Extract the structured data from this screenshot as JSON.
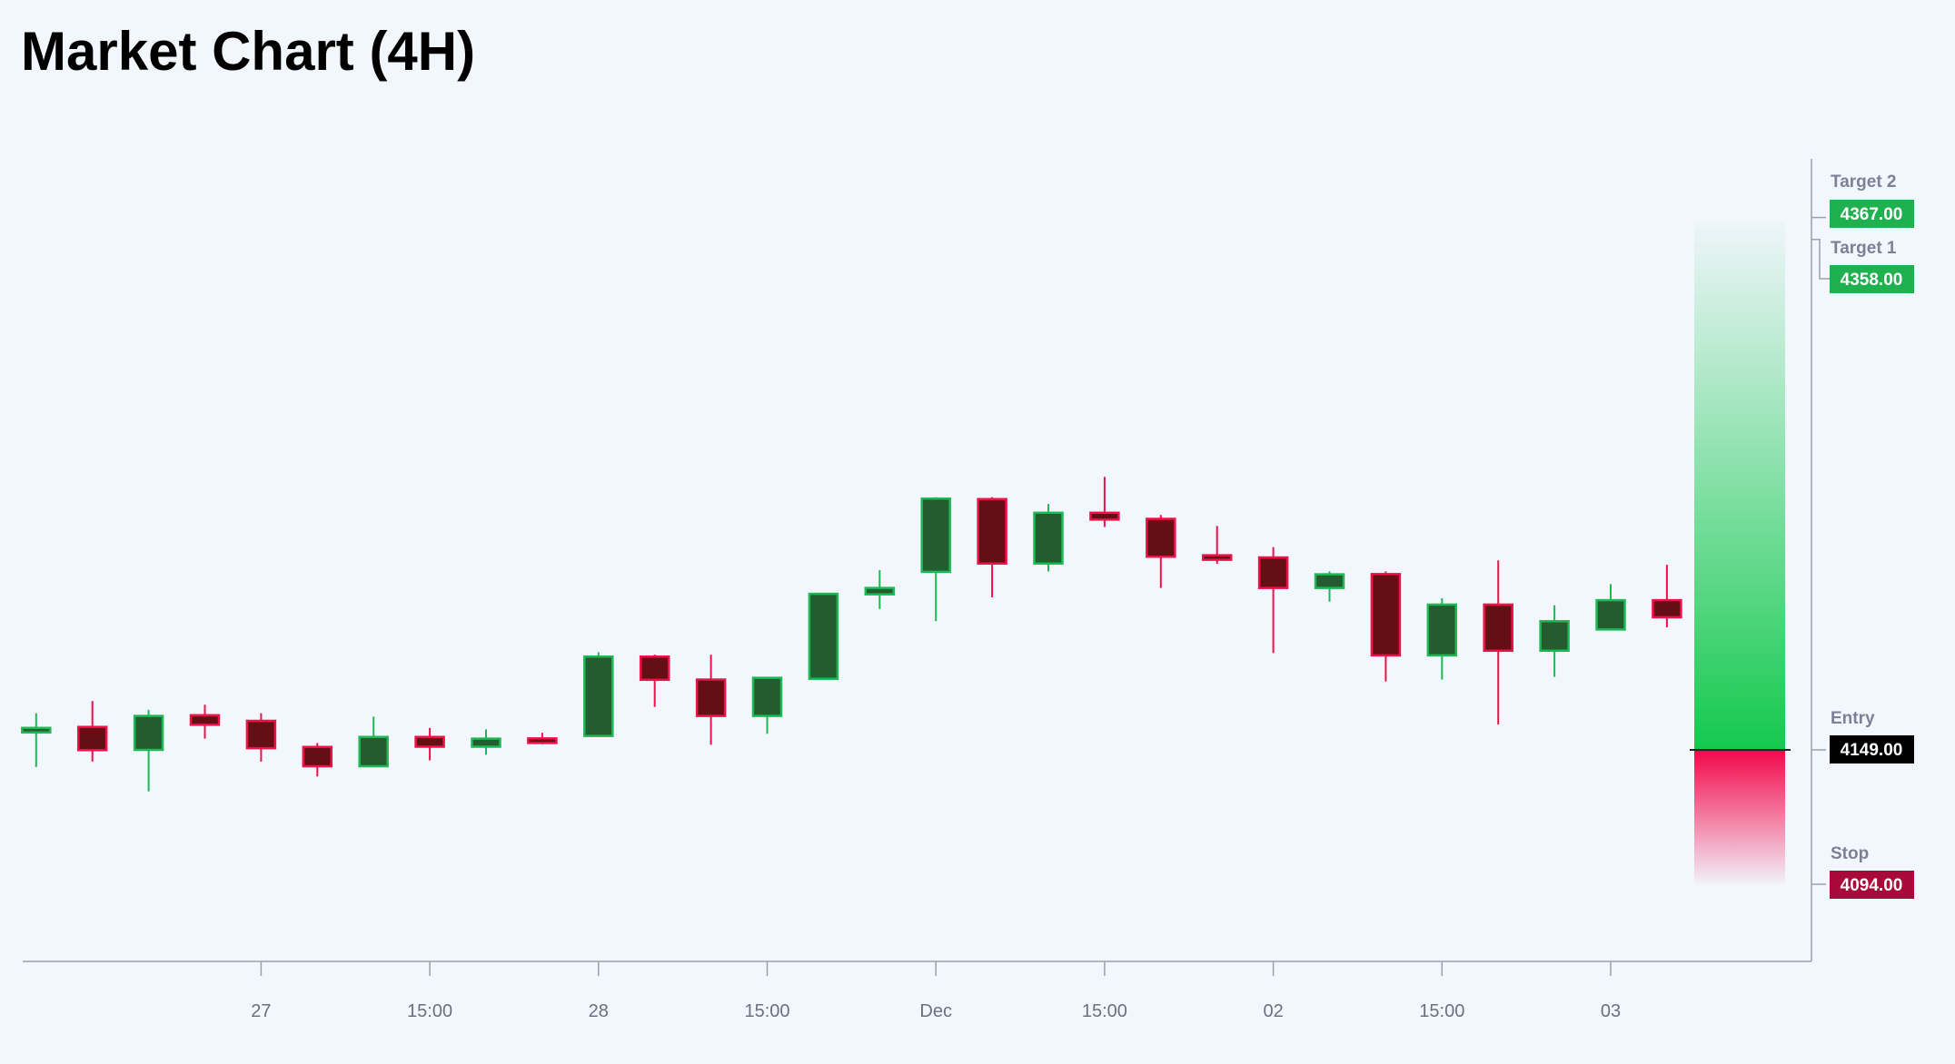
{
  "title": "Market Chart (4H)",
  "chart_data": {
    "type": "candlestick",
    "title": "Market Chart (4H)",
    "x_tick_labels": [
      {
        "candle_index": 4,
        "label": "27"
      },
      {
        "candle_index": 7,
        "label": "15:00"
      },
      {
        "candle_index": 10,
        "label": "28"
      },
      {
        "candle_index": 13,
        "label": "15:00"
      },
      {
        "candle_index": 16,
        "label": "Dec"
      },
      {
        "candle_index": 19,
        "label": "15:00"
      },
      {
        "candle_index": 22,
        "label": "02"
      },
      {
        "candle_index": 25,
        "label": "15:00"
      },
      {
        "candle_index": 28,
        "label": "03"
      }
    ],
    "candles": [
      {
        "o": 4157,
        "h": 4164,
        "l": 4142,
        "c": 4158
      },
      {
        "o": 4158.4,
        "h": 4169,
        "l": 4144.2,
        "c": 4148.9
      },
      {
        "o": 4149,
        "h": 4165.4,
        "l": 4132,
        "c": 4162.9
      },
      {
        "o": 4163.2,
        "h": 4167.5,
        "l": 4153.6,
        "c": 4159.3
      },
      {
        "o": 4160.9,
        "h": 4164,
        "l": 4144.2,
        "c": 4149.7
      },
      {
        "o": 4150.2,
        "h": 4151.8,
        "l": 4138.1,
        "c": 4142.3
      },
      {
        "o": 4142.3,
        "h": 4162.6,
        "l": 4142.3,
        "c": 4154.3
      },
      {
        "o": 4154.3,
        "h": 4158,
        "l": 4144.7,
        "c": 4150.3
      },
      {
        "o": 4150.3,
        "h": 4157.4,
        "l": 4147,
        "c": 4153.6
      },
      {
        "o": 4153.7,
        "h": 4156,
        "l": 4151.3,
        "c": 4152.5
      },
      {
        "o": 4154.7,
        "h": 4189,
        "l": 4154.7,
        "c": 4187.2
      },
      {
        "o": 4187.2,
        "h": 4188,
        "l": 4166.6,
        "c": 4177.7
      },
      {
        "o": 4177.8,
        "h": 4188,
        "l": 4151.1,
        "c": 4162.9
      },
      {
        "o": 4162.9,
        "h": 4178.5,
        "l": 4155.6,
        "c": 4178.5
      },
      {
        "o": 4178.1,
        "h": 4212.9,
        "l": 4178.1,
        "c": 4212.9
      },
      {
        "o": 4212.7,
        "h": 4222.6,
        "l": 4206.7,
        "c": 4215.3
      },
      {
        "o": 4221.9,
        "h": 4252.5,
        "l": 4201.7,
        "c": 4251.9
      },
      {
        "o": 4251.7,
        "h": 4252.5,
        "l": 4211.5,
        "c": 4225.3
      },
      {
        "o": 4225.3,
        "h": 4249.7,
        "l": 4222.1,
        "c": 4246.1
      },
      {
        "o": 4246.1,
        "h": 4260.8,
        "l": 4240.3,
        "c": 4243.3
      },
      {
        "o": 4243.6,
        "h": 4245.2,
        "l": 4215.3,
        "c": 4228.1
      },
      {
        "o": 4228.7,
        "h": 4240.7,
        "l": 4225.2,
        "c": 4227.3
      },
      {
        "o": 4227.8,
        "h": 4232,
        "l": 4188.7,
        "c": 4215.3
      },
      {
        "o": 4215.3,
        "h": 4222.1,
        "l": 4209.7,
        "c": 4220.9
      },
      {
        "o": 4221,
        "h": 4222.1,
        "l": 4177,
        "c": 4187.7
      },
      {
        "o": 4187.7,
        "h": 4211.1,
        "l": 4177.8,
        "c": 4208.5
      },
      {
        "o": 4208.5,
        "h": 4226.6,
        "l": 4159.4,
        "c": 4189.6
      },
      {
        "o": 4189.6,
        "h": 4208.2,
        "l": 4178.9,
        "c": 4201.7
      },
      {
        "o": 4198.3,
        "h": 4216.9,
        "l": 4198.3,
        "c": 4210.3
      },
      {
        "o": 4210.3,
        "h": 4224.8,
        "l": 4199.2,
        "c": 4203.3
      }
    ],
    "levels": [
      {
        "name": "Target 2",
        "value": "4367.00",
        "price": 4367,
        "color": "#1fb150"
      },
      {
        "name": "Target 1",
        "value": "4358.00",
        "price": 4358,
        "color": "#1fb150"
      },
      {
        "name": "Entry",
        "value": "4149.00",
        "price": 4149,
        "color": "#000000"
      },
      {
        "name": "Stop",
        "value": "4094.00",
        "price": 4094,
        "color": "#a8083a"
      }
    ],
    "colors": {
      "up_border": "#1db954",
      "up_body": "#235d2f",
      "down_border": "#f0104a",
      "down_body": "#650e14",
      "background": "#f2f6fd"
    },
    "grid": false
  }
}
